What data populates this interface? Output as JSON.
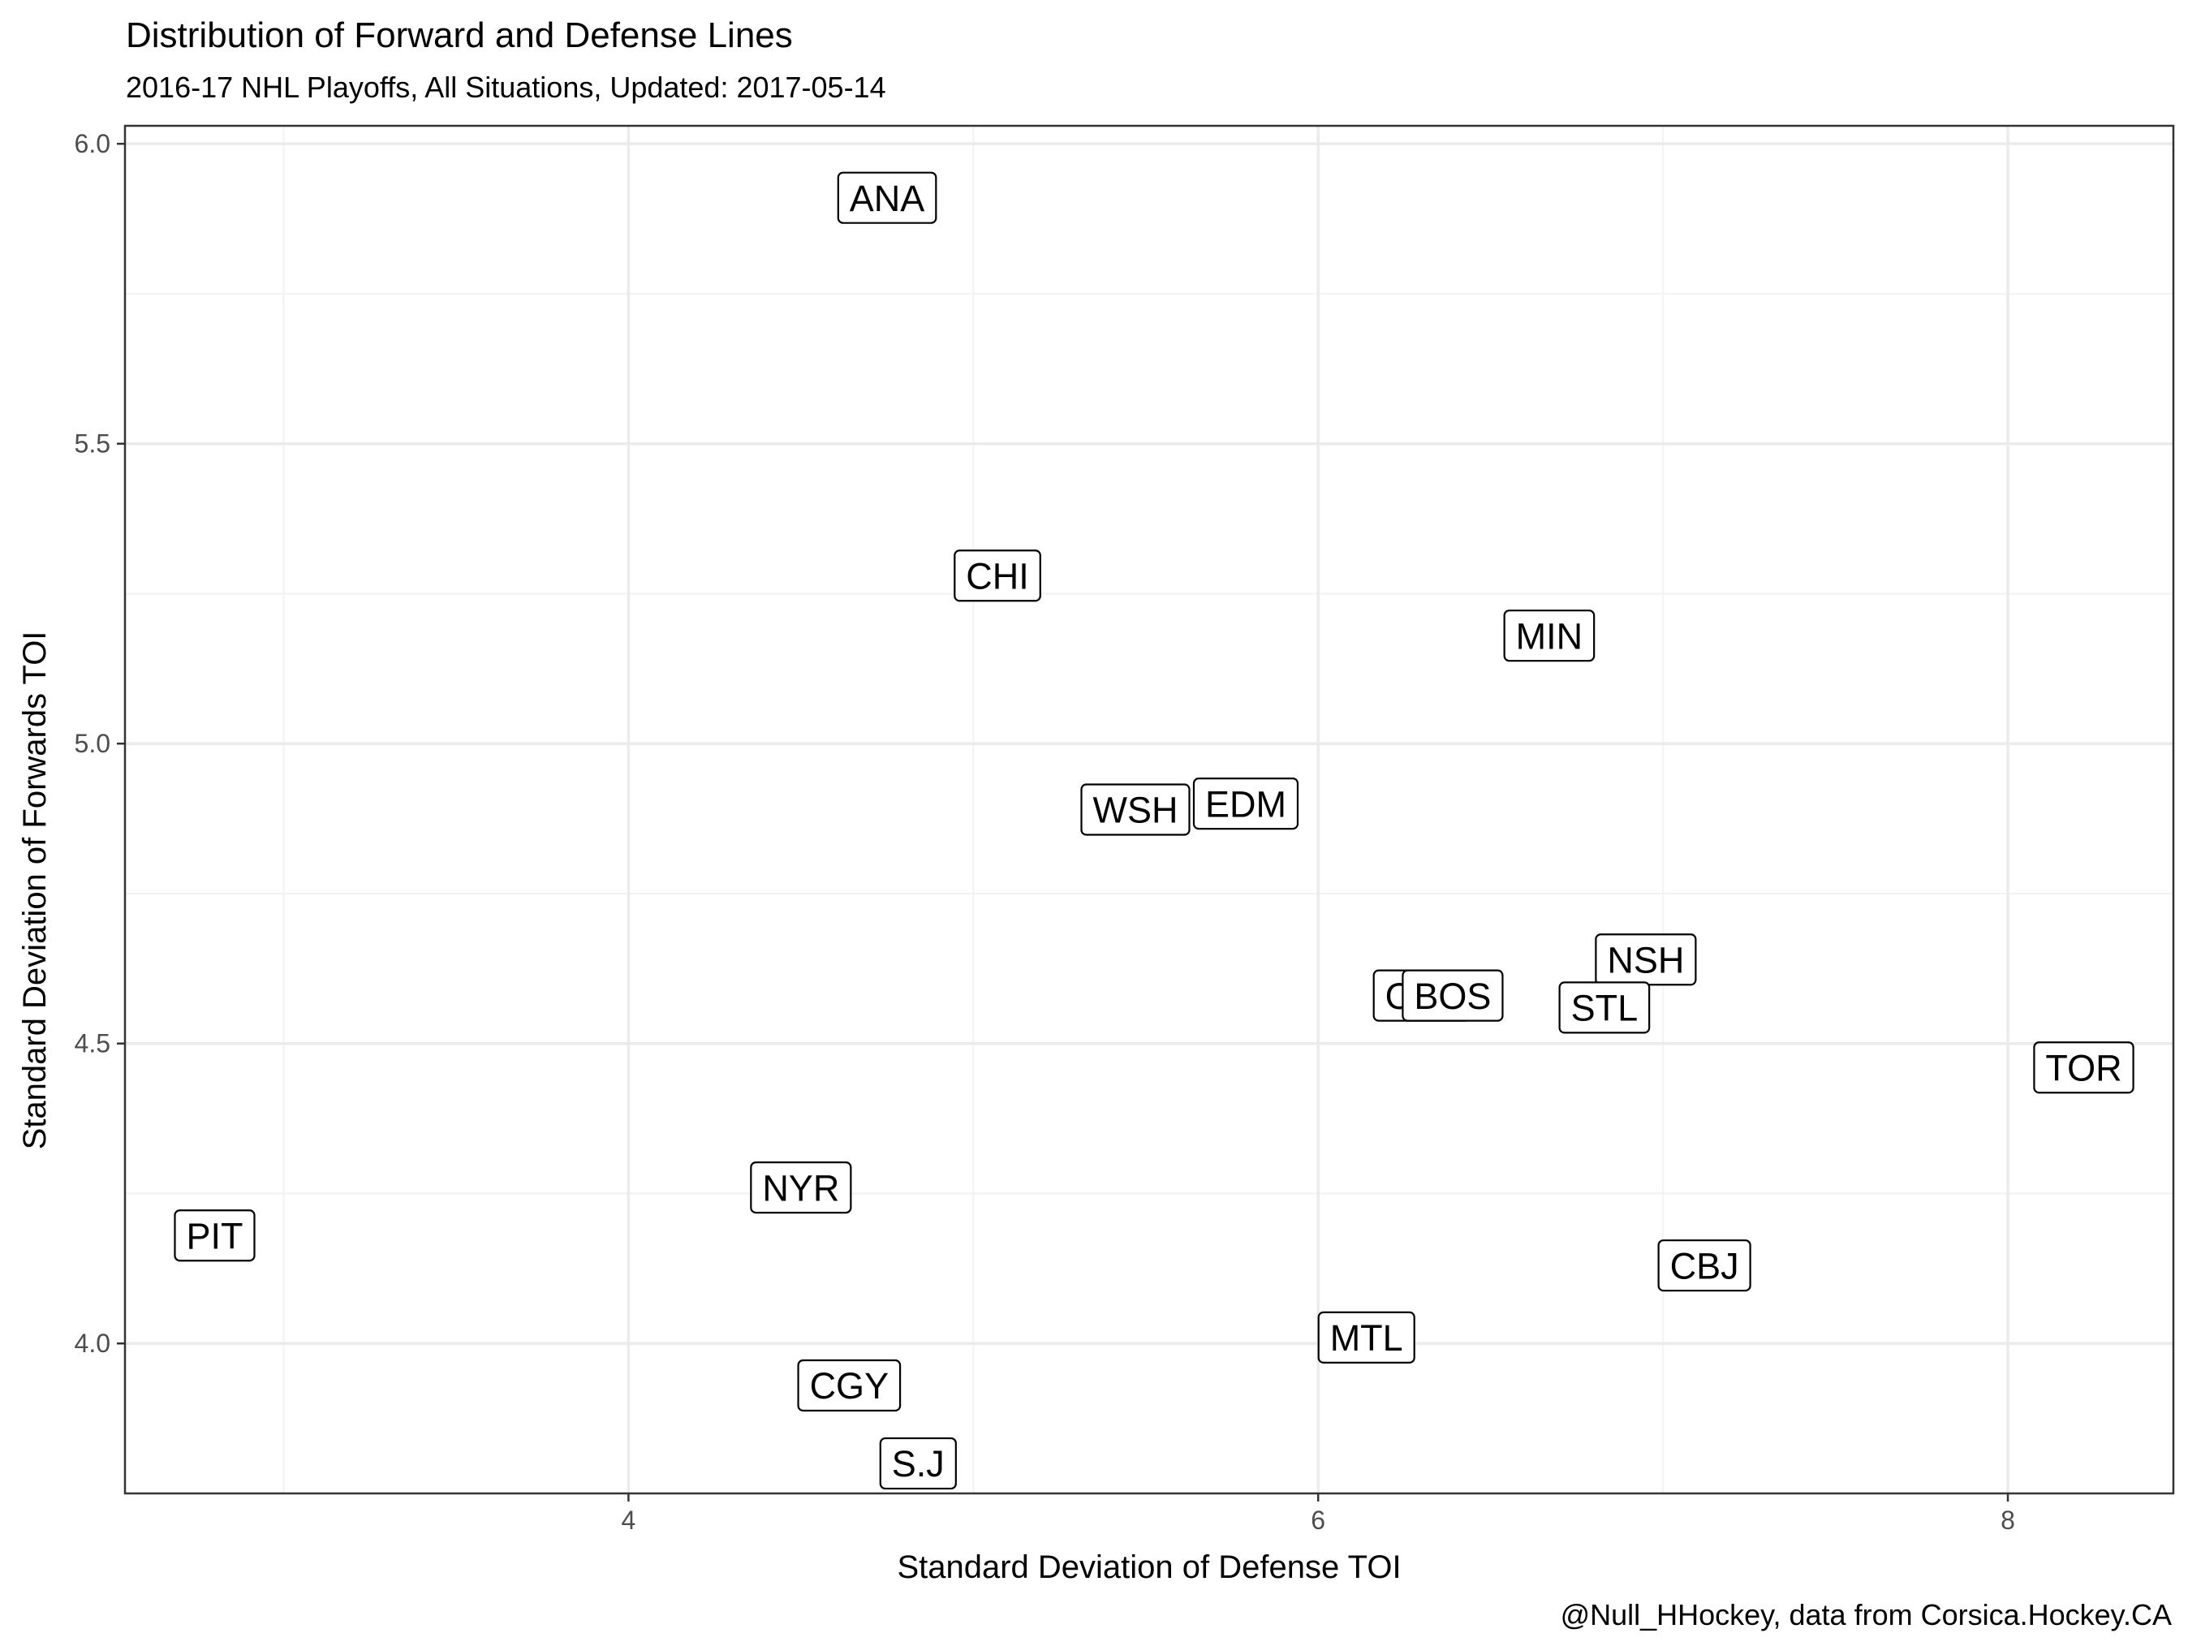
{
  "chart_data": {
    "type": "scatter",
    "title": "Distribution of Forward and Defense Lines",
    "subtitle": "2016-17 NHL Playoffs, All Situations, Updated: 2017-05-14",
    "caption": "@Null_HHockey, data from Corsica.Hockey.CA",
    "xlabel": "Standard Deviation of Defense TOI",
    "ylabel": "Standard Deviation of Forwards TOI",
    "xlim": [
      2.54,
      8.48
    ],
    "ylim": [
      3.75,
      6.03
    ],
    "x_ticks": [
      4,
      6,
      8
    ],
    "x_tick_labels": [
      "4",
      "6",
      "8"
    ],
    "y_ticks": [
      4.0,
      4.5,
      5.0,
      5.5,
      6.0
    ],
    "y_tick_labels": [
      "4.0",
      "4.5",
      "5.0",
      "5.5",
      "6.0"
    ],
    "x_minor_ticks": [
      3,
      5,
      7
    ],
    "y_minor_ticks": [
      3.75,
      4.25,
      4.75,
      5.25,
      5.75
    ],
    "grid": true,
    "legend": "none",
    "points": [
      {
        "label": "ANA",
        "x": 4.75,
        "y": 5.91
      },
      {
        "label": "CHI",
        "x": 5.07,
        "y": 5.28
      },
      {
        "label": "MIN",
        "x": 6.67,
        "y": 5.18
      },
      {
        "label": "WSH",
        "x": 5.47,
        "y": 4.89
      },
      {
        "label": "EDM",
        "x": 5.79,
        "y": 4.9
      },
      {
        "label": "NSH",
        "x": 6.95,
        "y": 4.64
      },
      {
        "label": "OTT",
        "x": 6.3,
        "y": 4.58
      },
      {
        "label": "BOS",
        "x": 6.39,
        "y": 4.58
      },
      {
        "label": "STL",
        "x": 6.83,
        "y": 4.56
      },
      {
        "label": "TOR",
        "x": 8.22,
        "y": 4.46
      },
      {
        "label": "NYR",
        "x": 4.5,
        "y": 4.26
      },
      {
        "label": "PIT",
        "x": 2.8,
        "y": 4.18
      },
      {
        "label": "CBJ",
        "x": 7.12,
        "y": 4.13
      },
      {
        "label": "MTL",
        "x": 6.14,
        "y": 4.01
      },
      {
        "label": "CGY",
        "x": 4.64,
        "y": 3.93
      },
      {
        "label": "S.J",
        "x": 4.84,
        "y": 3.8
      }
    ]
  }
}
